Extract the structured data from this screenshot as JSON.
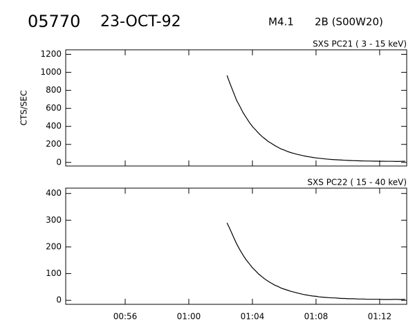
{
  "header": {
    "event": "05770",
    "date": "23-OCT-92",
    "class": "M4.1",
    "optical": "2B (S00W20)"
  },
  "chart_data": [
    {
      "type": "line",
      "title": "SXS PC21  (  3 - 15 keV)",
      "ylabel": "CTS/SEC",
      "color": "#000000",
      "xlim": [
        52.26,
        73.7
      ],
      "xticks": [
        56,
        60,
        64,
        68,
        72
      ],
      "ylim": [
        -40,
        1250
      ],
      "yticks": [
        0,
        200,
        400,
        600,
        800,
        1000,
        1200
      ],
      "x": [
        62.4,
        62.6,
        62.8,
        63,
        63.2,
        63.4,
        63.6,
        63.8,
        64,
        64.2,
        64.4,
        64.6,
        64.8,
        65,
        65.2,
        65.4,
        65.6,
        65.8,
        66,
        66.2,
        66.4,
        66.6,
        66.8,
        67,
        67.2,
        67.4,
        67.6,
        67.8,
        68,
        68.2,
        68.4,
        68.6,
        68.8,
        69,
        69.2,
        69.4,
        69.6,
        69.8,
        70,
        70.2,
        70.4,
        70.6,
        70.8,
        71,
        71.2,
        71.4,
        71.6,
        71.8,
        72,
        72.2,
        72.4,
        72.6,
        72.8,
        73,
        73.2,
        73.4,
        73.6
      ],
      "values": [
        965,
        870,
        780,
        690,
        625,
        555,
        500,
        445,
        398,
        360,
        322,
        288,
        260,
        232,
        210,
        188,
        168,
        150,
        137,
        122,
        110,
        100,
        90,
        82,
        74,
        67,
        61,
        55,
        50,
        46,
        42,
        38,
        35,
        32,
        30,
        28,
        26,
        24,
        22,
        21,
        19,
        18,
        17,
        16,
        15,
        15,
        14,
        14,
        13,
        13,
        12,
        12,
        12,
        11,
        11,
        12,
        13
      ]
    },
    {
      "type": "line",
      "title": "SXS PC22  ( 15 - 40 keV)",
      "color": "#000000",
      "xlim": [
        52.26,
        73.7
      ],
      "xticks": [
        {
          "value": 56,
          "label": "00:56"
        },
        {
          "value": 60,
          "label": "01:00"
        },
        {
          "value": 64,
          "label": "01:04"
        },
        {
          "value": 68,
          "label": "01:08"
        },
        {
          "value": 72,
          "label": "01:12"
        }
      ],
      "ylim": [
        -15,
        420
      ],
      "yticks": [
        0,
        100,
        200,
        300,
        400
      ],
      "x": [
        62.4,
        62.6,
        62.8,
        63,
        63.2,
        63.4,
        63.6,
        63.8,
        64,
        64.2,
        64.4,
        64.6,
        64.8,
        65,
        65.2,
        65.4,
        65.6,
        65.8,
        66,
        66.2,
        66.4,
        66.6,
        66.8,
        67,
        67.2,
        67.4,
        67.6,
        67.8,
        68,
        68.2,
        68.4,
        68.6,
        68.8,
        69,
        69.2,
        69.4,
        69.6,
        69.8,
        70,
        70.2,
        70.4,
        70.6,
        70.8,
        71,
        71.2,
        71.4,
        71.6,
        71.8,
        72,
        72.2,
        72.4,
        72.6,
        72.8,
        73,
        73.2,
        73.4,
        73.6
      ],
      "values": [
        290,
        265,
        238,
        212,
        190,
        170,
        152,
        137,
        122,
        110,
        98,
        88,
        79,
        71,
        64,
        57,
        52,
        46,
        42,
        38,
        34,
        31,
        28,
        25,
        22,
        20,
        18,
        16,
        15,
        13,
        12,
        11,
        10,
        9,
        9,
        8,
        7,
        7,
        6,
        6,
        6,
        5,
        5,
        5,
        4,
        4,
        4,
        4,
        4,
        3,
        3,
        3,
        3,
        4,
        3,
        3,
        4
      ]
    }
  ]
}
